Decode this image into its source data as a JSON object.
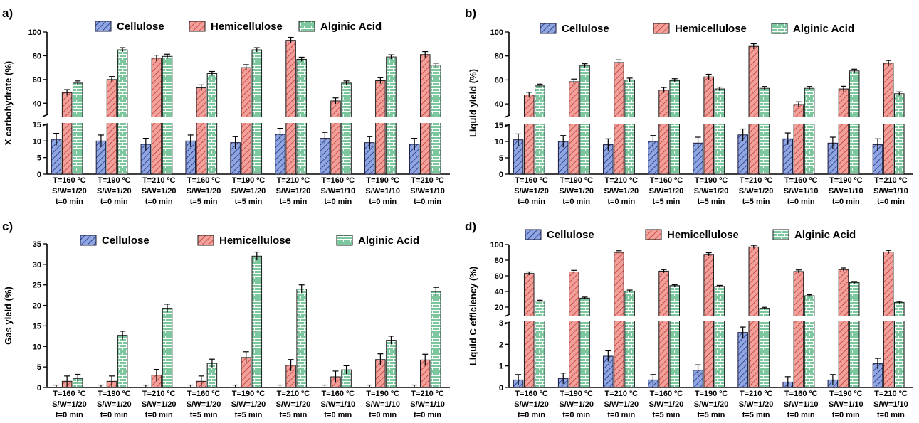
{
  "colors": {
    "cellulose_fill": "#8fa6e0",
    "cellulose_hatch": "#1f2f88",
    "hemicellulose_fill": "#f2a09c",
    "hemicellulose_hatch": "#c0392b",
    "alginic_fill": "#7dc79f",
    "alginic_line": "#ffffff",
    "axis": "#000000"
  },
  "chart_data": [
    {
      "id": "a",
      "type": "bar",
      "panel_label": "a)",
      "ylabel": "X carbohydrate  (%)",
      "axis_break": true,
      "lower_range": [
        0,
        15
      ],
      "lower_ticks": [
        0,
        5,
        10,
        15
      ],
      "upper_range": [
        30,
        100
      ],
      "upper_ticks": [
        40,
        60,
        80,
        100
      ],
      "categories": [
        [
          "T=160 ºC",
          "S/W=1/20",
          "t=0 min"
        ],
        [
          "T=190 ºC",
          "S/W=1/20",
          "t=0 min"
        ],
        [
          "T=210 ºC",
          "S/W=1/20",
          "t=0 min"
        ],
        [
          "T=160 ºC",
          "S/W=1/20",
          "t=5 min"
        ],
        [
          "T=190 ºC",
          "S/W=1/20",
          "t=5 min"
        ],
        [
          "T=210 ºC",
          "S/W=1/20",
          "t=5 min"
        ],
        [
          "T=160 ºC",
          "S/W=1/10",
          "t=0 min"
        ],
        [
          "T=190 ºC",
          "S/W=1/10",
          "t=0 min"
        ],
        [
          "T=210 ºC",
          "S/W=1/10",
          "t=0 min"
        ]
      ],
      "series": [
        {
          "name": "Cellulose",
          "values": [
            10.5,
            10,
            9,
            10,
            9.5,
            12,
            10.8,
            9.5,
            9
          ],
          "errors": [
            1.8,
            1.8,
            1.8,
            1.8,
            1.8,
            1.8,
            1.8,
            1.8,
            1.8
          ]
        },
        {
          "name": "Hemicellulose",
          "values": [
            49,
            60,
            78,
            53,
            70,
            93,
            42,
            59,
            81
          ],
          "errors": [
            2.5,
            2.5,
            2.5,
            2.5,
            2.5,
            2.5,
            2.5,
            2.5,
            2.5
          ]
        },
        {
          "name": "Alginic Acid",
          "values": [
            57,
            85,
            79.5,
            65,
            85,
            77,
            57,
            79,
            72
          ],
          "errors": [
            1.8,
            1.8,
            1.8,
            1.8,
            1.8,
            1.8,
            1.8,
            1.8,
            1.8
          ]
        }
      ]
    },
    {
      "id": "b",
      "type": "bar",
      "panel_label": "b)",
      "ylabel": "Liquid yield (%)",
      "axis_break": true,
      "lower_range": [
        0,
        15
      ],
      "lower_ticks": [
        0,
        5,
        10,
        15
      ],
      "upper_range": [
        30,
        100
      ],
      "upper_ticks": [
        40,
        60,
        80,
        100
      ],
      "categories": [
        [
          "T=160 ºC",
          "S/W=1/20",
          "t=0 min"
        ],
        [
          "T=190 ºC",
          "S/W=1/20",
          "t=0 min"
        ],
        [
          "T=210 ºC",
          "S/W=1/20",
          "t=0 min"
        ],
        [
          "T=160 ºC",
          "S/W=1/20",
          "t=5 min"
        ],
        [
          "T=190 ºC",
          "S/W=1/20",
          "t=5 min"
        ],
        [
          "T=210 ºC",
          "S/W=1/20",
          "t=5 min"
        ],
        [
          "T=160 ºC",
          "S/W=1/10",
          "t=0 min"
        ],
        [
          "T=190 ºC",
          "S/W=1/10",
          "t=0 min"
        ],
        [
          "T=210 ºC",
          "S/W=1/10",
          "t=0 min"
        ]
      ],
      "series": [
        {
          "name": "Cellulose",
          "values": [
            10.5,
            10,
            9,
            10,
            9.5,
            12,
            10.8,
            9.5,
            9
          ],
          "errors": [
            1.8,
            1.8,
            1.8,
            1.8,
            1.8,
            1.8,
            1.8,
            1.8,
            1.8
          ]
        },
        {
          "name": "Hemicellulose",
          "values": [
            47.5,
            58.5,
            74.5,
            51.5,
            62.5,
            88,
            39.5,
            52.5,
            74
          ],
          "errors": [
            2.2,
            2.2,
            2.2,
            2.2,
            2.2,
            2.2,
            2.2,
            2.2,
            2.2
          ]
        },
        {
          "name": "Alginic Acid",
          "values": [
            55,
            72,
            60,
            59.5,
            52.5,
            53,
            53,
            67.5,
            48.5
          ],
          "errors": [
            1.5,
            1.5,
            1.5,
            1.5,
            1.5,
            1.5,
            1.5,
            1.5,
            1.5
          ]
        }
      ]
    },
    {
      "id": "c",
      "type": "bar",
      "panel_label": "c)",
      "ylabel": "Gas yield (%)",
      "axis_break": false,
      "range": [
        0,
        35
      ],
      "ticks": [
        0,
        5,
        10,
        15,
        20,
        25,
        30,
        35
      ],
      "categories": [
        [
          "T=160 ºC",
          "S/W=1/20",
          "t=0 min"
        ],
        [
          "T=190 ºC",
          "S/W=1/20",
          "t=0 min"
        ],
        [
          "T=210 ºC",
          "S/W=1/20",
          "t=0 min"
        ],
        [
          "T=160 ºC",
          "S/W=1/20",
          "t=5 min"
        ],
        [
          "T=190 ºC",
          "S/W=1/20",
          "t=5 min"
        ],
        [
          "T=210 ºC",
          "S/W=1/20",
          "t=5 min"
        ],
        [
          "T=160 ºC",
          "S/W=1/10",
          "t=0 min"
        ],
        [
          "T=190 ºC",
          "S/W=1/10",
          "t=0 min"
        ],
        [
          "T=210 ºC",
          "S/W=1/10",
          "t=0 min"
        ]
      ],
      "series": [
        {
          "name": "Cellulose",
          "values": [
            0,
            0,
            0,
            0,
            0,
            0,
            0,
            0,
            0
          ],
          "errors": [
            0.6,
            0.6,
            0.6,
            0.6,
            0.6,
            0.6,
            0.6,
            0.6,
            0.6
          ]
        },
        {
          "name": "Hemicellulose",
          "values": [
            1.5,
            1.5,
            3,
            1.5,
            7.3,
            5.4,
            2.6,
            6.8,
            6.7
          ],
          "errors": [
            1.3,
            1.3,
            1.4,
            1.3,
            1.4,
            1.4,
            1.4,
            1.4,
            1.4
          ]
        },
        {
          "name": "Alginic Acid",
          "values": [
            2.2,
            12.7,
            19.3,
            5.9,
            32,
            24,
            4.3,
            11.5,
            23.4
          ],
          "errors": [
            1,
            1,
            1,
            1,
            1,
            1,
            1,
            1,
            1
          ]
        }
      ]
    },
    {
      "id": "d",
      "type": "bar",
      "panel_label": "d)",
      "ylabel": "Liquid C efficiency (%)",
      "axis_break": true,
      "lower_range": [
        0,
        3
      ],
      "lower_ticks": [
        0,
        1,
        2,
        3
      ],
      "upper_range": [
        10,
        100
      ],
      "upper_ticks": [
        20,
        40,
        60,
        80,
        100
      ],
      "categories": [
        [
          "T=160 ºC",
          "S/W=1/20",
          "t=0 min"
        ],
        [
          "T=190 ºC",
          "S/W=1/20",
          "t=0 min"
        ],
        [
          "T=210 ºC",
          "S/W=1/20",
          "t=0 min"
        ],
        [
          "T=160 ºC",
          "S/W=1/20",
          "t=5 min"
        ],
        [
          "T=190 ºC",
          "S/W=1/20",
          "t=5 min"
        ],
        [
          "T=210 ºC",
          "S/W=1/20",
          "t=5 min"
        ],
        [
          "T=160 ºC",
          "S/W=1/10",
          "t=0 min"
        ],
        [
          "T=190 ºC",
          "S/W=1/10",
          "t=0 min"
        ],
        [
          "T=210 ºC",
          "S/W=1/10",
          "t=0 min"
        ]
      ],
      "series": [
        {
          "name": "Cellulose",
          "values": [
            0.35,
            0.42,
            1.45,
            0.35,
            0.8,
            2.55,
            0.25,
            0.35,
            1.1
          ],
          "errors": [
            0.25,
            0.25,
            0.25,
            0.25,
            0.25,
            0.25,
            0.25,
            0.25,
            0.25
          ]
        },
        {
          "name": "Hemicellulose",
          "values": [
            63,
            65,
            90,
            66,
            87.5,
            97,
            65.5,
            68,
            90.5
          ],
          "errors": [
            2,
            2,
            2,
            2,
            2,
            2,
            2,
            2,
            2
          ]
        },
        {
          "name": "Alginic Acid",
          "values": [
            27.5,
            31.5,
            40.5,
            47.5,
            46.5,
            18.5,
            34.5,
            51.5,
            26
          ],
          "errors": [
            1.3,
            1.3,
            1.3,
            1.3,
            1.3,
            1.3,
            1.3,
            1.3,
            1.3
          ]
        }
      ]
    }
  ]
}
